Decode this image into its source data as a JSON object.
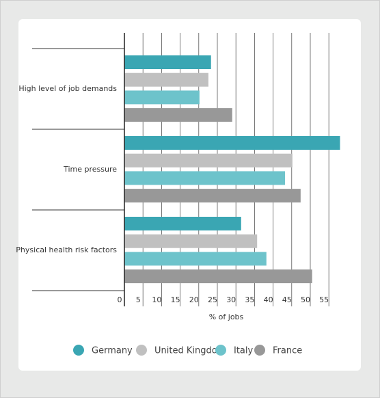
{
  "chart_data": {
    "type": "bar",
    "orientation": "horizontal",
    "categories": [
      "High level of job demands",
      "Time pressure",
      "Physical health risk factors"
    ],
    "series": [
      {
        "name": "Germany",
        "color": "#3aa6b3",
        "values": [
          23.3,
          58.0,
          31.4
        ]
      },
      {
        "name": "United Kingdom",
        "color": "#c0c0c0",
        "values": [
          22.6,
          45.2,
          35.7
        ]
      },
      {
        "name": "Italy",
        "color": "#6dc3cb",
        "values": [
          20.2,
          43.2,
          38.2
        ]
      },
      {
        "name": "France",
        "color": "#989898",
        "values": [
          29.0,
          47.4,
          50.5
        ]
      }
    ],
    "xlabel": "% of jobs",
    "xlim": [
      0,
      58
    ],
    "xticks": [
      0,
      5,
      10,
      15,
      20,
      25,
      30,
      35,
      40,
      45,
      50,
      55
    ],
    "grid": true,
    "legend": "bottom"
  }
}
